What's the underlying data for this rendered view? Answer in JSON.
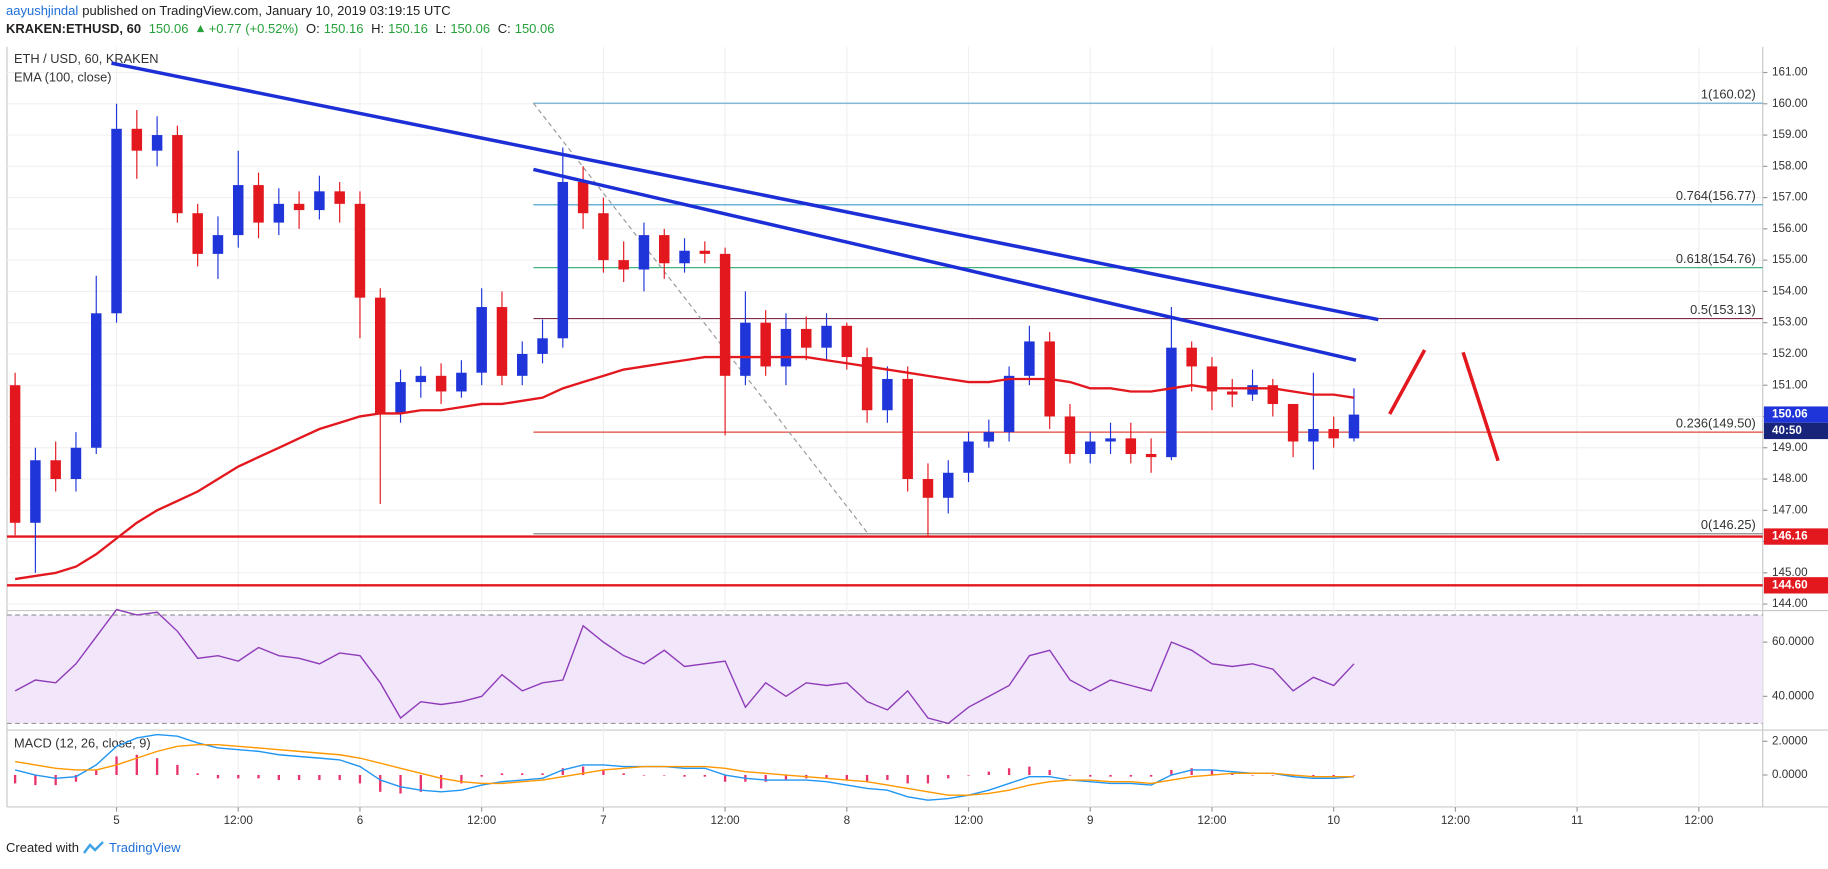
{
  "header": {
    "author": "aayushjindal",
    "published": "published on TradingView.com, January 10, 2019 03:19:15 UTC",
    "symbol": "KRAKEN:ETHUSD, 60",
    "last": "150.06",
    "change": "+0.77 (+0.52%)",
    "ohlc": [
      {
        "key": "O:",
        "value": "150.16"
      },
      {
        "key": "H:",
        "value": "150.16"
      },
      {
        "key": "L:",
        "value": "150.06"
      },
      {
        "key": "C:",
        "value": "150.06"
      }
    ]
  },
  "chart_data": [
    {
      "type": "candlestick",
      "title": "ETH / USD, 60, KRAKEN",
      "subtitle": "EMA (100, close)",
      "x": [
        -10,
        -8,
        -6,
        -4,
        -2,
        0,
        2,
        4,
        6,
        8,
        10,
        12,
        14,
        16,
        18,
        20,
        22,
        24,
        26,
        28,
        30,
        32,
        34,
        36,
        38,
        40,
        42,
        44,
        46,
        48,
        50,
        52,
        54,
        56,
        58,
        60,
        62,
        64,
        66,
        68,
        70,
        72,
        74,
        76,
        78,
        80,
        82,
        84,
        86,
        88,
        90,
        92,
        94,
        96,
        98,
        100,
        102,
        104,
        106,
        108,
        110,
        112,
        114,
        116,
        118,
        120,
        122
      ],
      "open": [
        151.0,
        146.6,
        148.6,
        148.0,
        149.0,
        153.3,
        159.2,
        158.5,
        159.0,
        156.5,
        155.2,
        155.8,
        157.4,
        156.2,
        156.8,
        156.6,
        157.2,
        156.8,
        153.8,
        150.1,
        151.1,
        151.3,
        150.8,
        151.4,
        153.5,
        151.3,
        152.0,
        152.5,
        157.5,
        156.5,
        155.0,
        154.7,
        155.8,
        154.9,
        155.3,
        155.2,
        151.3,
        153.0,
        151.6,
        152.8,
        152.2,
        152.9,
        151.9,
        150.2,
        151.2,
        148.0,
        147.4,
        148.2,
        149.2,
        149.5,
        151.3,
        152.4,
        150.0,
        148.8,
        149.2,
        149.3,
        148.8,
        148.7,
        152.2,
        151.6,
        150.8,
        150.7,
        151.0,
        150.4,
        149.2,
        149.6,
        149.3
      ],
      "high": [
        151.4,
        149.0,
        149.2,
        149.5,
        154.5,
        160.0,
        159.8,
        159.6,
        159.3,
        156.8,
        156.4,
        158.5,
        157.8,
        157.3,
        157.2,
        157.7,
        157.5,
        157.2,
        154.1,
        151.5,
        151.6,
        151.7,
        151.8,
        154.1,
        154.0,
        152.4,
        153.1,
        158.6,
        158.0,
        157.0,
        155.6,
        156.2,
        156.0,
        155.7,
        155.6,
        155.4,
        154.0,
        153.4,
        153.3,
        153.2,
        153.3,
        153.0,
        152.2,
        151.6,
        151.6,
        148.5,
        148.6,
        149.5,
        149.9,
        151.6,
        152.9,
        152.7,
        150.4,
        149.5,
        149.8,
        149.8,
        149.3,
        153.5,
        152.4,
        151.9,
        151.2,
        151.5,
        151.2,
        150.4,
        151.4,
        150.0,
        150.9
      ],
      "low": [
        146.2,
        145.0,
        147.6,
        147.6,
        148.8,
        153.0,
        157.6,
        158.0,
        156.2,
        154.8,
        154.4,
        155.4,
        155.7,
        155.8,
        156.0,
        156.3,
        156.2,
        152.5,
        147.2,
        149.8,
        150.6,
        150.4,
        150.6,
        151.0,
        151.0,
        151.0,
        151.7,
        152.2,
        156.0,
        154.6,
        154.3,
        154.0,
        154.4,
        154.6,
        154.9,
        149.4,
        151.0,
        151.3,
        151.0,
        151.8,
        151.8,
        151.5,
        149.8,
        149.8,
        147.6,
        146.2,
        146.9,
        147.9,
        149.0,
        149.2,
        151.0,
        149.6,
        148.5,
        148.5,
        148.8,
        148.5,
        148.2,
        148.6,
        150.8,
        150.2,
        150.3,
        150.5,
        150.0,
        148.7,
        148.3,
        149.0,
        149.2
      ],
      "close": [
        146.6,
        148.6,
        148.0,
        149.0,
        153.3,
        159.2,
        158.5,
        159.0,
        156.5,
        155.2,
        155.8,
        157.4,
        156.2,
        156.8,
        156.6,
        157.2,
        156.8,
        153.8,
        150.1,
        151.1,
        151.3,
        150.8,
        151.4,
        153.5,
        151.3,
        152.0,
        152.5,
        157.5,
        156.5,
        155.0,
        154.7,
        155.8,
        154.9,
        155.3,
        155.2,
        151.3,
        153.0,
        151.6,
        152.8,
        152.2,
        152.9,
        151.9,
        150.2,
        151.2,
        148.0,
        147.4,
        148.2,
        149.2,
        149.5,
        151.3,
        152.4,
        150.0,
        148.8,
        149.2,
        149.3,
        148.8,
        148.7,
        152.2,
        151.6,
        150.8,
        150.7,
        151.0,
        150.4,
        149.2,
        149.6,
        149.3,
        150.06
      ],
      "up_color": "#1f35d9",
      "down_color": "#e3171e",
      "ema": {
        "color": "#e3171e",
        "values": [
          144.8,
          144.9,
          145.0,
          145.2,
          145.6,
          146.1,
          146.6,
          147.0,
          147.3,
          147.6,
          148.0,
          148.4,
          148.7,
          149.0,
          149.3,
          149.6,
          149.8,
          150.0,
          150.1,
          150.1,
          150.2,
          150.2,
          150.3,
          150.4,
          150.4,
          150.5,
          150.6,
          150.9,
          151.1,
          151.3,
          151.5,
          151.6,
          151.7,
          151.8,
          151.9,
          151.9,
          151.9,
          151.9,
          151.9,
          151.9,
          151.8,
          151.7,
          151.6,
          151.5,
          151.4,
          151.3,
          151.2,
          151.1,
          151.1,
          151.2,
          151.2,
          151.2,
          151.1,
          150.9,
          150.9,
          150.8,
          150.8,
          150.9,
          151.0,
          150.9,
          150.9,
          150.9,
          150.9,
          150.8,
          150.7,
          150.7,
          150.6
        ]
      },
      "xlim": [
        -10.8,
        162.3
      ],
      "ylim": [
        143.85,
        161.82
      ],
      "grid": true,
      "yticks": [
        {
          "value": 144,
          "label": "144.00"
        },
        {
          "value": 145,
          "label": "145.00"
        },
        {
          "value": 146,
          "label": "146.00"
        },
        {
          "value": 147,
          "label": "147.00"
        },
        {
          "value": 148,
          "label": "148.00"
        },
        {
          "value": 149,
          "label": "149.00"
        },
        {
          "value": 150,
          "label": "150.00"
        },
        {
          "value": 151,
          "label": "151.00"
        },
        {
          "value": 152,
          "label": "152.00"
        },
        {
          "value": 153,
          "label": "153.00"
        },
        {
          "value": 154,
          "label": "154.00"
        },
        {
          "value": 155,
          "label": "155.00"
        },
        {
          "value": 156,
          "label": "156.00"
        },
        {
          "value": 157,
          "label": "157.00"
        },
        {
          "value": 158,
          "label": "158.00"
        },
        {
          "value": 159,
          "label": "159.00"
        },
        {
          "value": 160,
          "label": "160.00"
        },
        {
          "value": 161,
          "label": "161.00"
        }
      ],
      "trendline_color": "#1c2fd6",
      "trendlines": [
        {
          "x": [
            -0.5,
            124.4
          ],
          "y": [
            161.3,
            153.1
          ]
        },
        {
          "x": [
            41.1,
            122.2
          ],
          "y": [
            157.9,
            151.8
          ]
        }
      ],
      "fib_retracement": {
        "from": {
          "x": 41.1,
          "y": 160.02
        },
        "to": {
          "x": 74.1,
          "y": 146.25
        },
        "levels": [
          {
            "value": 160.02,
            "label": "1(160.02)",
            "color": "#5fa8c9"
          },
          {
            "value": 156.77,
            "label": "0.764(156.77)",
            "color": "#3a9cc4"
          },
          {
            "value": 154.76,
            "label": "0.618(154.76)",
            "color": "#3fb27f"
          },
          {
            "value": 153.13,
            "label": "0.5(153.13)",
            "color": "#7d2e4e"
          },
          {
            "value": 149.5,
            "label": "0.236(149.50)",
            "color": "#e0473f"
          },
          {
            "value": 146.25,
            "label": "0(146.25)",
            "color": "#8a8a8a"
          }
        ]
      },
      "horizontal_lines": [
        {
          "value": 146.16,
          "color": "#e3171e"
        },
        {
          "value": 144.6,
          "label": "144.60",
          "color": "#e3171e"
        }
      ],
      "price_marker": {
        "value": 150.06,
        "color": "#1f35d9",
        "countdown": "40:50"
      }
    },
    {
      "type": "line",
      "title": "RSI (14, close)",
      "x": [
        -10,
        -8,
        -6,
        -4,
        -2,
        0,
        2,
        4,
        6,
        8,
        10,
        12,
        14,
        16,
        18,
        20,
        22,
        24,
        26,
        28,
        30,
        32,
        34,
        36,
        38,
        40,
        42,
        44,
        46,
        48,
        50,
        52,
        54,
        56,
        58,
        60,
        62,
        64,
        66,
        68,
        70,
        72,
        74,
        76,
        78,
        80,
        82,
        84,
        86,
        88,
        90,
        92,
        94,
        96,
        98,
        100,
        102,
        104,
        106,
        108,
        110,
        112,
        114,
        116,
        118,
        120,
        122
      ],
      "series": [
        {
          "color": "#8e3cb8",
          "values": [
            42,
            46,
            45,
            52,
            62,
            72,
            70,
            71,
            64,
            54,
            55,
            53,
            58,
            55,
            54,
            52,
            56,
            55,
            45,
            32,
            38,
            37,
            38,
            40,
            48,
            42,
            45,
            46,
            66,
            60,
            55,
            52,
            57,
            51,
            52,
            53,
            36,
            45,
            40,
            45,
            44,
            45,
            38,
            35,
            42,
            32,
            30,
            36,
            40,
            44,
            55,
            57,
            46,
            42,
            46,
            44,
            42,
            60,
            57,
            52,
            51,
            52,
            50,
            42,
            47,
            44,
            52
          ]
        }
      ],
      "band": [
        30,
        70
      ],
      "band_color": "#f2e6fb",
      "xlim": [
        -10.8,
        162.3
      ],
      "ylim": [
        28,
        71
      ],
      "yticks": [
        {
          "value": 40,
          "label": "40.0000"
        },
        {
          "value": 60,
          "label": "60.0000"
        }
      ]
    },
    {
      "type": "macd",
      "title": "MACD (12, 26, close, 9)",
      "x": [
        -10,
        -8,
        -6,
        -4,
        -2,
        0,
        2,
        4,
        6,
        8,
        10,
        12,
        14,
        16,
        18,
        20,
        22,
        24,
        26,
        28,
        30,
        32,
        34,
        36,
        38,
        40,
        42,
        44,
        46,
        48,
        50,
        52,
        54,
        56,
        58,
        60,
        62,
        64,
        66,
        68,
        70,
        72,
        74,
        76,
        78,
        80,
        82,
        84,
        86,
        88,
        90,
        92,
        94,
        96,
        98,
        100,
        102,
        104,
        106,
        108,
        110,
        112,
        114,
        116,
        118,
        120,
        122
      ],
      "series": [
        {
          "color": "#2196f3",
          "values": [
            0.3,
            0.0,
            -0.2,
            -0.1,
            0.6,
            1.7,
            2.2,
            2.4,
            2.3,
            1.9,
            1.6,
            1.5,
            1.4,
            1.2,
            1.1,
            1.0,
            0.9,
            0.5,
            -0.3,
            -0.7,
            -0.9,
            -1.0,
            -0.9,
            -0.6,
            -0.4,
            -0.3,
            -0.2,
            0.3,
            0.6,
            0.6,
            0.5,
            0.5,
            0.5,
            0.4,
            0.4,
            0.0,
            -0.2,
            -0.3,
            -0.3,
            -0.3,
            -0.4,
            -0.6,
            -0.8,
            -0.9,
            -1.3,
            -1.5,
            -1.4,
            -1.2,
            -0.9,
            -0.5,
            -0.1,
            -0.1,
            -0.3,
            -0.4,
            -0.5,
            -0.5,
            -0.6,
            0.0,
            0.3,
            0.3,
            0.2,
            0.1,
            0.1,
            -0.1,
            -0.2,
            -0.2,
            -0.1
          ]
        },
        {
          "color": "#ff9800",
          "values": [
            0.8,
            0.6,
            0.4,
            0.3,
            0.3,
            0.6,
            1.0,
            1.4,
            1.7,
            1.8,
            1.8,
            1.7,
            1.6,
            1.5,
            1.4,
            1.3,
            1.2,
            1.0,
            0.7,
            0.4,
            0.1,
            -0.2,
            -0.4,
            -0.5,
            -0.5,
            -0.4,
            -0.3,
            -0.1,
            0.1,
            0.3,
            0.4,
            0.5,
            0.5,
            0.5,
            0.5,
            0.4,
            0.2,
            0.1,
            0.0,
            -0.1,
            -0.2,
            -0.3,
            -0.4,
            -0.6,
            -0.8,
            -1.0,
            -1.2,
            -1.2,
            -1.1,
            -0.9,
            -0.6,
            -0.4,
            -0.3,
            -0.3,
            -0.4,
            -0.4,
            -0.5,
            -0.3,
            -0.1,
            0.0,
            0.1,
            0.1,
            0.1,
            0.0,
            -0.1,
            -0.1,
            -0.1
          ]
        }
      ],
      "histogram": {
        "color": "#e8336b",
        "values": [
          -0.5,
          -0.6,
          -0.6,
          -0.4,
          0.3,
          1.1,
          1.2,
          1.0,
          0.6,
          0.1,
          -0.2,
          -0.2,
          -0.2,
          -0.3,
          -0.3,
          -0.3,
          -0.3,
          -0.5,
          -1.0,
          -1.1,
          -1.0,
          -0.8,
          -0.5,
          -0.1,
          0.1,
          0.1,
          0.1,
          0.4,
          0.5,
          0.3,
          0.1,
          0.0,
          0.0,
          -0.1,
          -0.1,
          -0.4,
          -0.4,
          -0.4,
          -0.3,
          -0.2,
          -0.2,
          -0.3,
          -0.4,
          -0.3,
          -0.5,
          -0.5,
          -0.2,
          0.0,
          0.2,
          0.4,
          0.5,
          0.3,
          0.0,
          -0.1,
          -0.1,
          -0.1,
          -0.1,
          0.3,
          0.4,
          0.3,
          0.1,
          0.0,
          0.0,
          -0.1,
          -0.1,
          -0.1,
          0.0
        ]
      },
      "xlim": [
        -10.8,
        162.3
      ],
      "ylim": [
        -1.9,
        2.6
      ],
      "yticks": [
        {
          "value": 2,
          "label": "2.0000"
        },
        {
          "value": 0,
          "label": "0.0000"
        }
      ],
      "xticks": [
        {
          "value": 0,
          "label": "5"
        },
        {
          "value": 12,
          "label": "12:00"
        },
        {
          "value": 24,
          "label": "6"
        },
        {
          "value": 36,
          "label": "12:00"
        },
        {
          "value": 48,
          "label": "7"
        },
        {
          "value": 60,
          "label": "12:00"
        },
        {
          "value": 72,
          "label": "8"
        },
        {
          "value": 84,
          "label": "12:00"
        },
        {
          "value": 96,
          "label": "9"
        },
        {
          "value": 108,
          "label": "12:00"
        },
        {
          "value": 120,
          "label": "10"
        },
        {
          "value": 132,
          "label": "12:00"
        },
        {
          "value": 144,
          "label": "11"
        },
        {
          "value": 156,
          "label": "12:00"
        }
      ]
    }
  ],
  "footer": {
    "created_with": "Created with",
    "brand": "TradingView"
  }
}
